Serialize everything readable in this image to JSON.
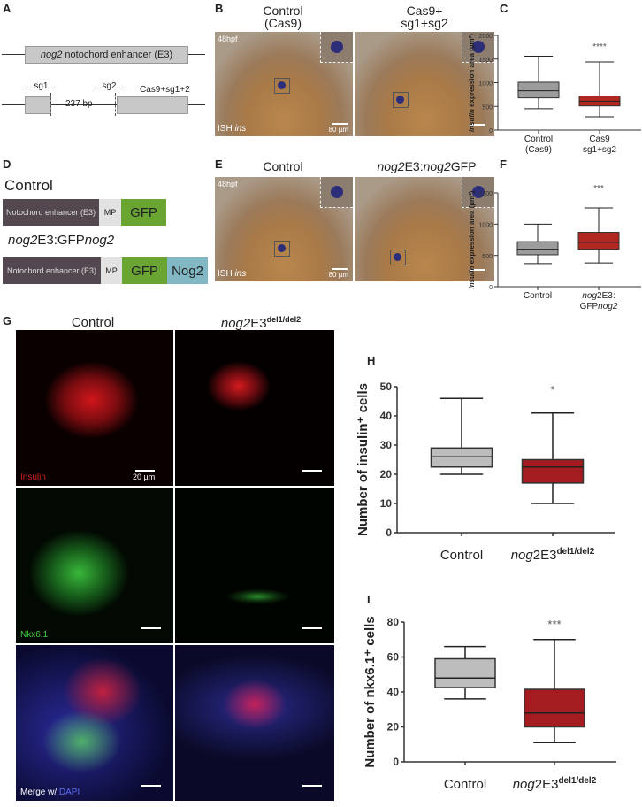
{
  "panels": {
    "A": "A",
    "B": "B",
    "C": "C",
    "D": "D",
    "E": "E",
    "F": "F",
    "G": "G",
    "H": "H",
    "I": "I"
  },
  "panelA": {
    "enhancer_italic": "nog2",
    "enhancer_rest": " notochord enhancer (E3)",
    "sg1": "...sg1...",
    "sg2": "...sg2...",
    "deletion": "237 bp",
    "treatment": "Cas9+sg1+2"
  },
  "panelB": {
    "col1_line1": "Control",
    "col1_line2": "(Cas9)",
    "col2_line1": "Cas9+",
    "col2_line2": "sg1+sg2",
    "stage": "48hpf",
    "stain_prefix": "ISH ",
    "stain_italic": "ins",
    "scale": "80 µm"
  },
  "panelD": {
    "control_title": "Control",
    "enhancer": "Notochord enhancer (E3)",
    "mp": "MP",
    "gfp": "GFP",
    "nog2": "Nog2",
    "construct_title_parts": [
      "nog2",
      "E3:GFP",
      "nog2"
    ]
  },
  "panelE": {
    "col1": "Control",
    "col2_italic": "nog2",
    "col2_mid": "E3:",
    "col2_italic2": "nog2",
    "col2_end": "GFP",
    "stage": "48hpf",
    "stain_prefix": "ISH ",
    "stain_italic": "ins",
    "scale": "80 µm"
  },
  "panelG": {
    "col1": "Control",
    "col2_italic": "nog2",
    "col2_rest": "E3",
    "col2_sup": "del1/del2",
    "row1_label": "Insulin",
    "row2_label": "Nkx6.1",
    "row3_label_a": "Merge w/ ",
    "row3_label_b": "DAPI",
    "scale": "20 µm",
    "colors": {
      "insulin": "#e0201e",
      "nkx": "#3fcf3f",
      "dapi": "#3a3ad8"
    }
  },
  "colors": {
    "control": "#9c9c9c",
    "treated": "#b0281f",
    "control_light": "#bdbdbd",
    "treated_dark": "#a51c20"
  },
  "chart_data": [
    {
      "id": "C",
      "type": "box",
      "ylabel_italic": "insulin",
      "ylabel_rest": " expression area (µm²)",
      "ylim": [
        0,
        2000
      ],
      "yticks": [
        0,
        500,
        1000,
        1500,
        2000
      ],
      "categories": [
        [
          "Control",
          "(Cas9)"
        ],
        [
          "Cas9",
          "sg1+sg2"
        ]
      ],
      "significance": "****",
      "series": [
        {
          "min": 450,
          "q1": 680,
          "median": 830,
          "q3": 1010,
          "max": 1560
        },
        {
          "min": 280,
          "q1": 510,
          "median": 610,
          "q3": 720,
          "max": 1440
        }
      ]
    },
    {
      "id": "F",
      "type": "box",
      "ylabel_italic": "insulin",
      "ylabel_rest": " expression area (µm²)",
      "ylim": [
        0,
        1500
      ],
      "yticks": [
        0,
        500,
        1000,
        1500
      ],
      "categories": [
        [
          "Control",
          ""
        ],
        [
          "nog2E3:",
          "GFPnog2"
        ]
      ],
      "significance": "***",
      "series": [
        {
          "min": 370,
          "q1": 510,
          "median": 600,
          "q3": 720,
          "max": 1000
        },
        {
          "min": 380,
          "q1": 600,
          "median": 710,
          "q3": 870,
          "max": 1260
        }
      ]
    },
    {
      "id": "H",
      "type": "box",
      "ylabel": "Number of insulin⁺ cells",
      "ylim": [
        0,
        50
      ],
      "yticks": [
        0,
        10,
        20,
        30,
        40,
        50
      ],
      "categories": [
        [
          "Control",
          ""
        ],
        [
          "nog2E3del1/del2",
          ""
        ]
      ],
      "significance": "*",
      "series": [
        {
          "min": 20,
          "q1": 22.5,
          "median": 26,
          "q3": 29,
          "max": 46
        },
        {
          "min": 10,
          "q1": 17,
          "median": 22.5,
          "q3": 25,
          "max": 41
        }
      ]
    },
    {
      "id": "I",
      "type": "box",
      "ylabel": "Number of nkx6.1⁺ cells",
      "ylim": [
        0,
        80
      ],
      "yticks": [
        0,
        20,
        40,
        60,
        80
      ],
      "categories": [
        [
          "Control",
          ""
        ],
        [
          "nog2E3del1/del2",
          ""
        ]
      ],
      "significance": "***",
      "series": [
        {
          "min": 36,
          "q1": 42.5,
          "median": 48,
          "q3": 59,
          "max": 66
        },
        {
          "min": 11,
          "q1": 20,
          "median": 28,
          "q3": 41.5,
          "max": 70
        }
      ]
    }
  ]
}
